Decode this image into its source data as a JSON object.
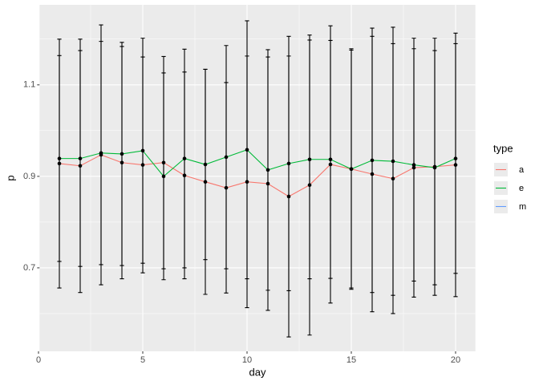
{
  "chart_data": {
    "type": "line",
    "x_label": "day",
    "y_label": "p",
    "legend_title": "type",
    "x": [
      1,
      2,
      3,
      4,
      5,
      6,
      7,
      8,
      9,
      10,
      11,
      12,
      13,
      14,
      15,
      16,
      17,
      18,
      19,
      20
    ],
    "series": [
      {
        "name": "a",
        "color": "#F8766D",
        "values": [
          0.928,
          0.923,
          0.947,
          0.93,
          0.925,
          0.93,
          0.902,
          0.888,
          0.875,
          0.888,
          0.884,
          0.856,
          0.881,
          0.926,
          0.916,
          0.905,
          0.895,
          0.919,
          0.921,
          0.925
        ],
        "errors": [
          0.272,
          0.277,
          0.284,
          0.254,
          0.236,
          0.232,
          0.226,
          0.246,
          0.23,
          0.275,
          0.277,
          0.307,
          0.328,
          0.303,
          0.263,
          0.301,
          0.295,
          0.283,
          0.281,
          0.288
        ]
      },
      {
        "name": "e",
        "color": "#00BA38",
        "values": [
          0.939,
          0.939,
          0.951,
          0.949,
          0.956,
          0.9,
          0.939,
          0.926,
          0.942,
          0.958,
          0.914,
          0.928,
          0.937,
          0.937,
          0.916,
          0.935,
          0.933,
          0.925,
          0.919,
          0.939
        ],
        "errors": [
          0.225,
          0.236,
          0.244,
          0.244,
          0.246,
          0.226,
          0.239,
          0.208,
          0.244,
          0.282,
          0.263,
          0.278,
          0.261,
          0.26,
          0.26,
          0.289,
          0.293,
          0.254,
          0.256,
          0.251
        ]
      },
      {
        "name": "m",
        "color": "#619CFF",
        "values": [
          null,
          null,
          null,
          null,
          null,
          null,
          null,
          null,
          null,
          null,
          null,
          null,
          null,
          null,
          null,
          null,
          null,
          null,
          null,
          null
        ]
      }
    ],
    "xlim": [
      0.05,
      20.95
    ],
    "xticks": [
      0,
      5,
      10,
      15,
      20
    ],
    "ylim": [
      0.5175,
      1.275
    ],
    "yticks": [
      0.7,
      0.9,
      1.1
    ],
    "grid": true,
    "legend": "right"
  }
}
